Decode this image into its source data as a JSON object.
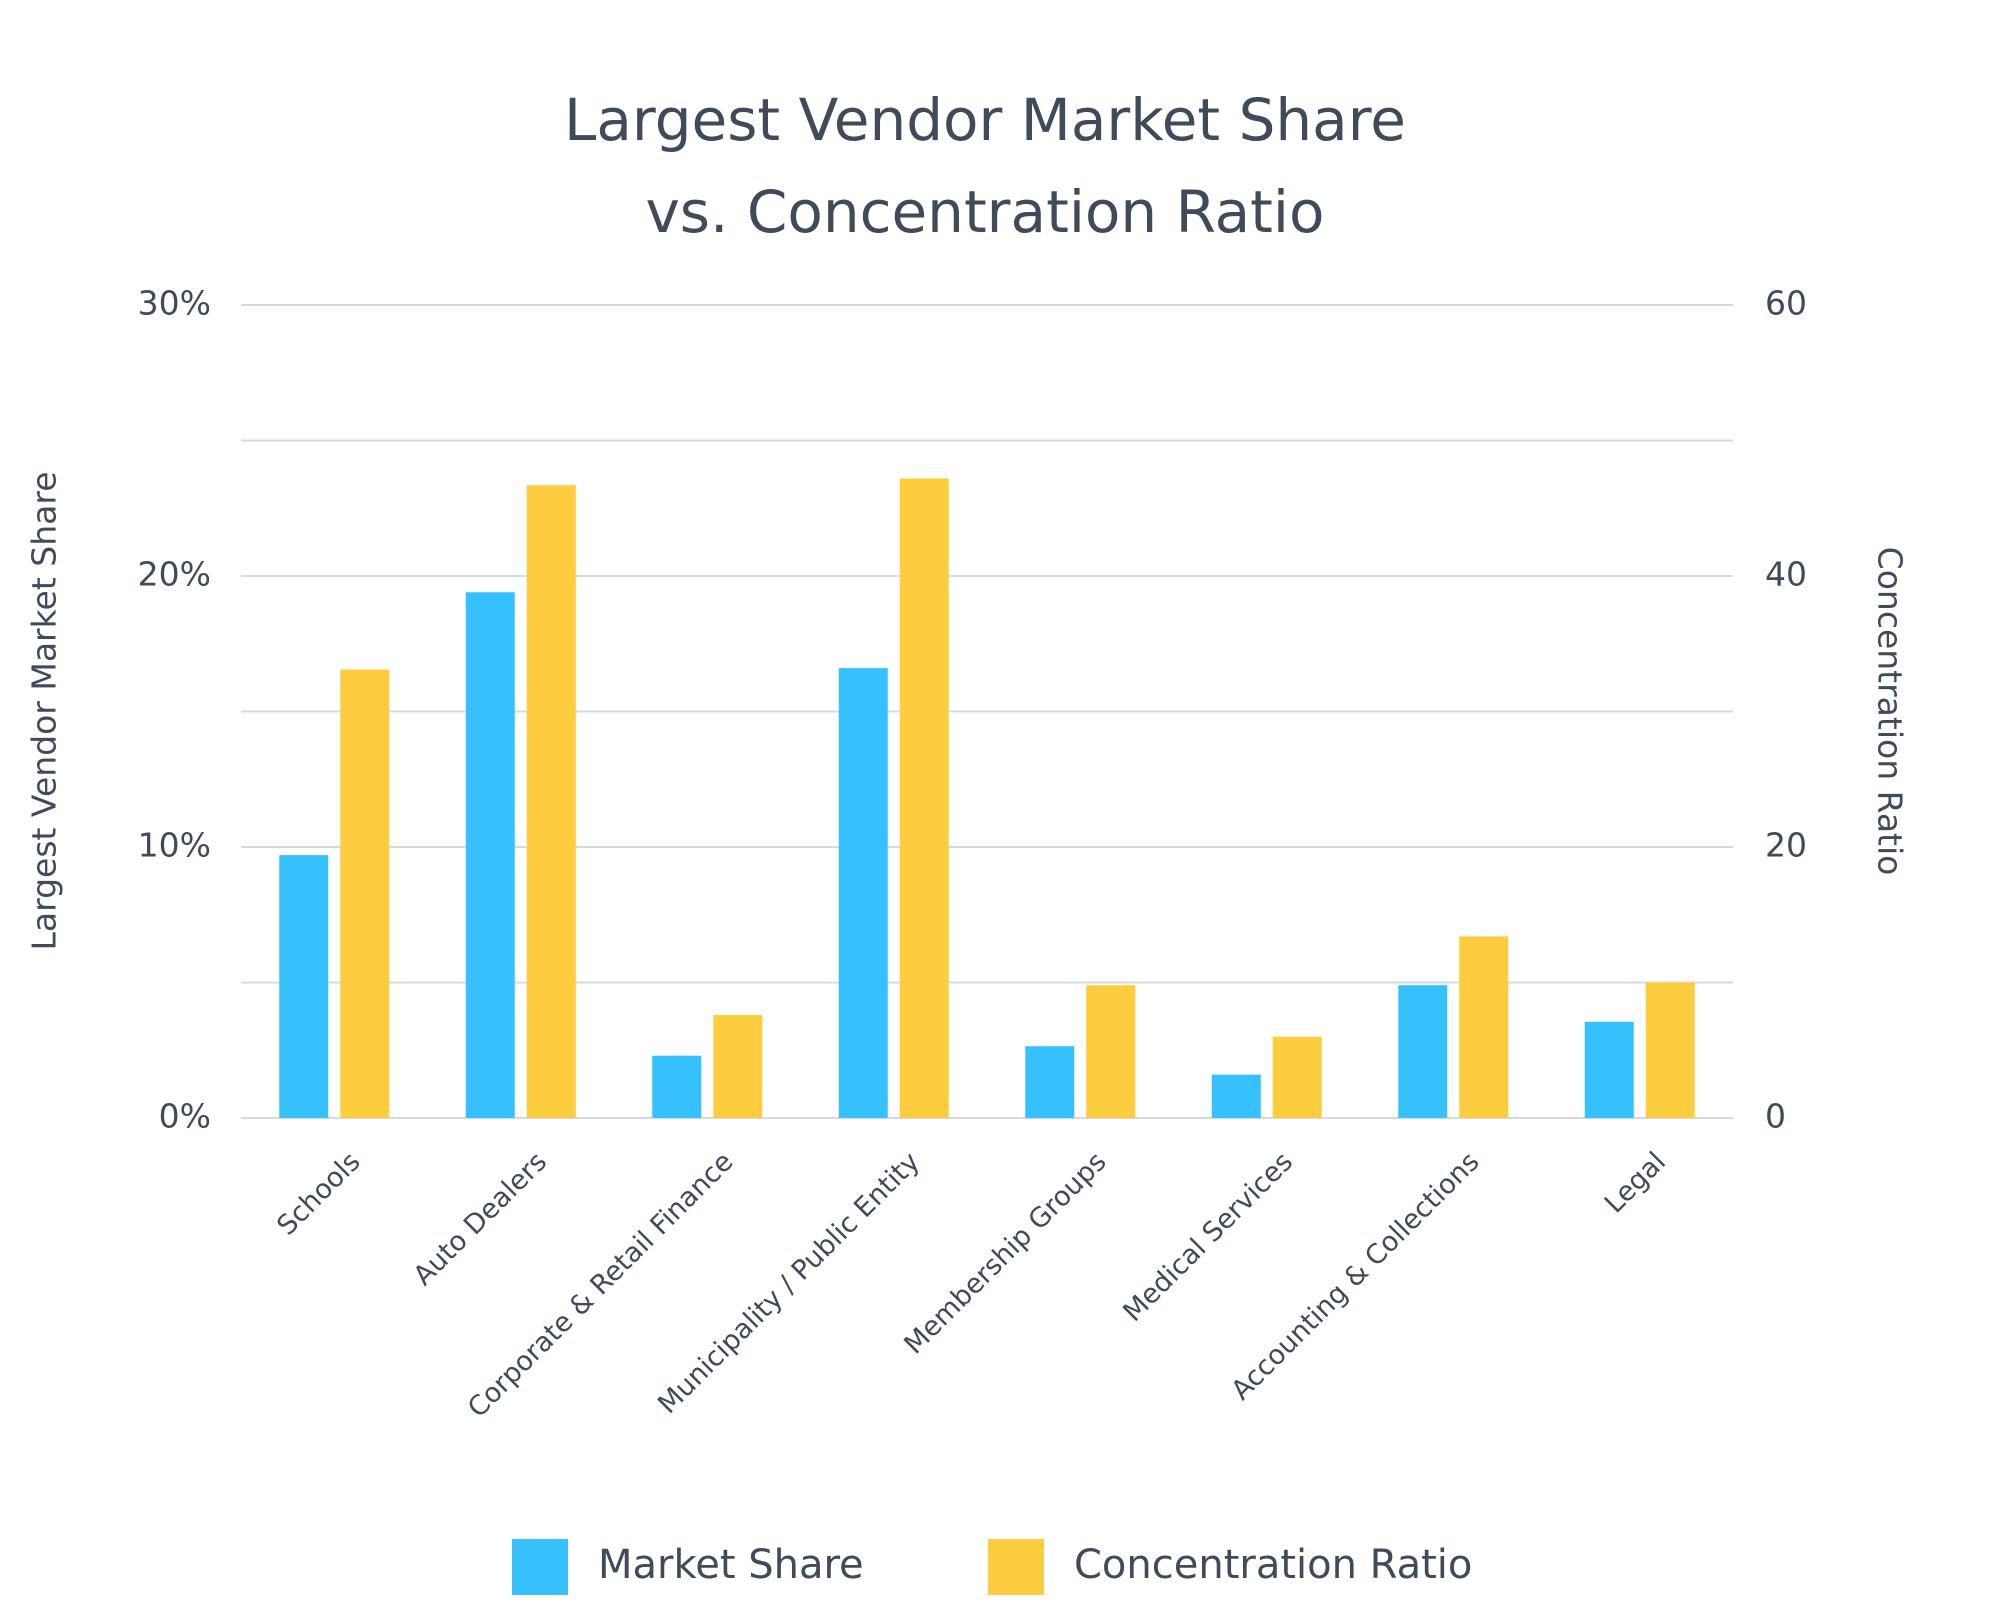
{
  "chart_data": {
    "type": "bar",
    "title": [
      "Largest Vendor Market Share",
      "vs. Concentration Ratio"
    ],
    "y_label": "Largest Vendor Market Share",
    "y2_label": "Concentration Ratio",
    "categories": [
      "Schools",
      "Auto Dealers",
      "Corporate & Retail Finance",
      "Municipality / Public Entity",
      "Membership Groups",
      "Medical Services",
      "Accounting & Collections",
      "Legal"
    ],
    "series": [
      {
        "name": "Market Share",
        "color": "#36c0fc",
        "values": [
          9.7,
          19.4,
          2.3,
          16.6,
          2.65,
          1.6,
          4.9,
          3.55
        ]
      },
      {
        "name": "Concentration Ratio",
        "color": "#fecd3f",
        "axis": "y2",
        "values": [
          33.1,
          46.7,
          7.6,
          47.2,
          9.8,
          6.0,
          13.4,
          10.0
        ]
      }
    ],
    "ylim": [
      0,
      30
    ],
    "yticks": [
      {
        "value": 0,
        "label": "0%"
      },
      {
        "value": 10,
        "label": "10%"
      },
      {
        "value": 20,
        "label": "20%"
      },
      {
        "value": 30,
        "label": "30%"
      }
    ],
    "y_minor_ticks": [
      5,
      15,
      25
    ],
    "y2lim": [
      0,
      60
    ],
    "y2ticks": [
      0,
      20,
      40,
      60
    ],
    "grid": true,
    "legend": "bottom"
  }
}
